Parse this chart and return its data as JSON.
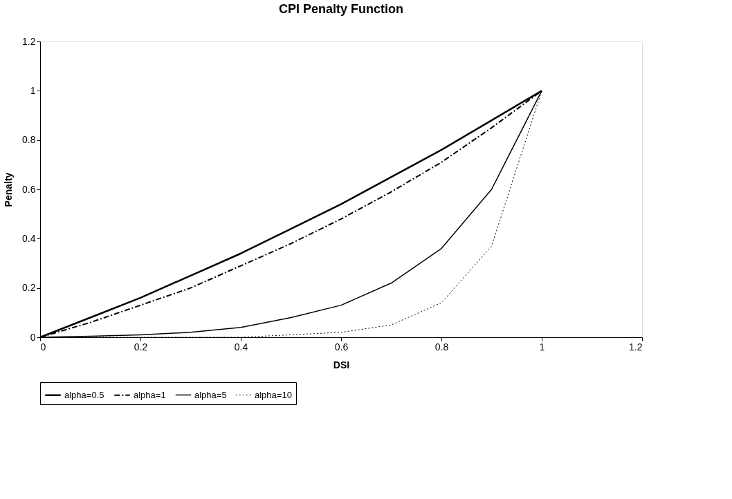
{
  "chart_data": {
    "type": "line",
    "title": "CPI Penalty Function",
    "xlabel": "DSI",
    "ylabel": "Penalty",
    "x": [
      0,
      0.1,
      0.2,
      0.3,
      0.4,
      0.5,
      0.6,
      0.7,
      0.8,
      0.9,
      1
    ],
    "series": [
      {
        "name": "alpha=0.5",
        "color": "#000000",
        "line_style": "solid",
        "values": [
          0,
          0.08,
          0.16,
          0.25,
          0.34,
          0.44,
          0.54,
          0.65,
          0.76,
          0.88,
          1
        ]
      },
      {
        "name": "alpha=1",
        "color": "#000000",
        "line_style": "dashdot",
        "values": [
          0,
          0.06,
          0.13,
          0.2,
          0.29,
          0.38,
          0.48,
          0.59,
          0.71,
          0.85,
          1
        ]
      },
      {
        "name": "alpha=5",
        "color": "#000000",
        "line_style": "solid",
        "values": [
          0,
          0.004,
          0.01,
          0.02,
          0.04,
          0.08,
          0.13,
          0.22,
          0.36,
          0.6,
          1
        ]
      },
      {
        "name": "alpha=10",
        "color": "#000000",
        "line_style": "dotted",
        "values": [
          0,
          0,
          0,
          0,
          0,
          0.01,
          0.02,
          0.05,
          0.14,
          0.37,
          1
        ]
      }
    ],
    "xlim": [
      0,
      1.2
    ],
    "xticks": [
      0,
      0.2,
      0.4,
      0.6,
      0.8,
      1,
      1.2
    ],
    "ylim": [
      0,
      1.2
    ],
    "yticks": [
      0,
      0.2,
      0.4,
      0.6,
      0.8,
      1,
      1.2
    ],
    "grid": false,
    "legend": "bottom",
    "marker": "none"
  }
}
